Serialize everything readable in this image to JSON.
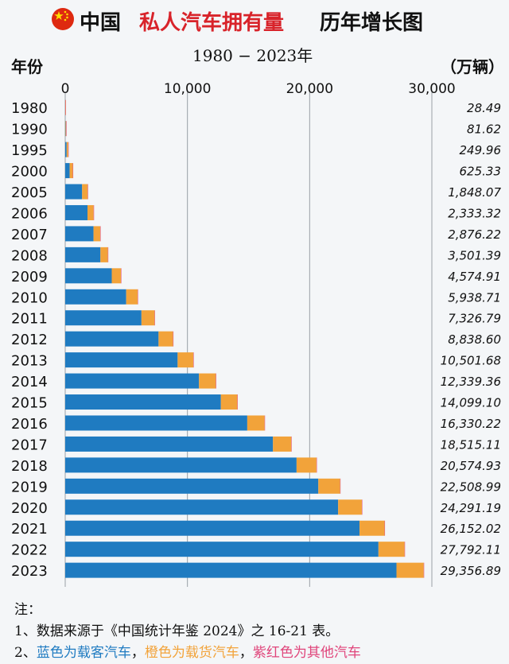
{
  "title": {
    "prefix": "中国",
    "highlight": "私人汽车拥有量",
    "suffix": "历年增长图"
  },
  "subtitle": "1980 − 2023年",
  "ylabel": "年份",
  "unit": "（万辆）",
  "colors": {
    "passenger": "#1f7bc1",
    "truck": "#f2a33a",
    "other": "#e0457b",
    "title_accent": "#d8232a"
  },
  "chart_data": {
    "type": "bar",
    "orientation": "horizontal",
    "stacked": true,
    "xlim": [
      0,
      30000
    ],
    "xticks": [
      "0",
      "10,000",
      "20,000",
      "30,000"
    ],
    "grid": true,
    "categories": [
      "1980",
      "1990",
      "1995",
      "2000",
      "2005",
      "2006",
      "2007",
      "2008",
      "2009",
      "2010",
      "2011",
      "2012",
      "2013",
      "2014",
      "2015",
      "2016",
      "2017",
      "2018",
      "2019",
      "2020",
      "2021",
      "2022",
      "2023"
    ],
    "series": [
      {
        "values": [
          1,
          24,
          115,
          365,
          1383,
          1822,
          2316,
          2880,
          3808,
          4989,
          6237,
          7637,
          9198,
          10946,
          12737,
          14896,
          17000,
          18930,
          20711,
          22333,
          24085,
          25630,
          27105
        ]
      },
      {
        "values": [
          27,
          57,
          133,
          257,
          458,
          504,
          552,
          612,
          757,
          937,
          1077,
          1188,
          1290,
          1379,
          1347,
          1420,
          1500,
          1630,
          1783,
          1940,
          2047,
          2140,
          2230
        ]
      },
      {
        "values": [
          0.49,
          0.62,
          1.96,
          3.33,
          7.07,
          7.32,
          8.22,
          9.39,
          9.91,
          12.71,
          12.79,
          13.6,
          13.68,
          14.36,
          15.1,
          14.22,
          15.11,
          14.93,
          14.99,
          18.19,
          20.02,
          22.11,
          21.89
        ]
      }
    ],
    "totals": [
      "28.49",
      "81.62",
      "249.96",
      "625.33",
      "1,848.07",
      "2,333.32",
      "2,876.22",
      "3,501.39",
      "4,574.91",
      "5,938.71",
      "7,326.79",
      "8,838.60",
      "10,501.68",
      "12,339.36",
      "14,099.10",
      "16,330.22",
      "18,515.11",
      "20,574.93",
      "22,508.99",
      "24,291.19",
      "26,152.02",
      "27,792.11",
      "29,356.89"
    ]
  },
  "notes": {
    "heading": "注：",
    "line1": "1、数据来源于《中国统计年鉴 2024》之 16-21 表。",
    "line2_prefix": "2、",
    "line2_blue": "蓝色为载客汽车",
    "line2_sep1": "，",
    "line2_orange": "橙色为载货汽车",
    "line2_sep2": "，",
    "line2_red": "紫红色为其他汽车"
  }
}
